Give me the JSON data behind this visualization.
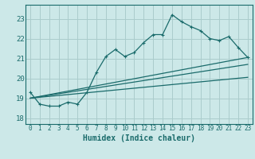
{
  "bg_color": "#cce8e8",
  "line_color": "#1a6b6b",
  "grid_color": "#aacccc",
  "xlabel": "Humidex (Indice chaleur)",
  "ylabel_ticks": [
    18,
    19,
    20,
    21,
    22,
    23
  ],
  "xlim": [
    -0.5,
    23.5
  ],
  "ylim": [
    17.7,
    23.7
  ],
  "main_x": [
    0,
    1,
    2,
    3,
    4,
    5,
    6,
    7,
    8,
    9,
    10,
    11,
    12,
    13,
    14,
    15,
    16,
    17,
    18,
    19,
    20,
    21,
    22,
    23
  ],
  "main_y": [
    19.3,
    18.7,
    18.6,
    18.6,
    18.8,
    18.7,
    19.3,
    20.3,
    21.1,
    21.45,
    21.1,
    21.3,
    21.8,
    22.2,
    22.2,
    23.2,
    22.85,
    22.6,
    22.4,
    22.0,
    21.9,
    22.1,
    21.55,
    21.05
  ],
  "trend1_x": [
    0,
    23
  ],
  "trend1_y": [
    19.0,
    21.05
  ],
  "trend2_x": [
    0,
    23
  ],
  "trend2_y": [
    19.0,
    20.7
  ],
  "trend3_x": [
    0,
    23
  ],
  "trend3_y": [
    19.0,
    20.05
  ],
  "x_tick_labels": [
    "0",
    "1",
    "2",
    "3",
    "4",
    "5",
    "6",
    "7",
    "8",
    "9",
    "10",
    "11",
    "12",
    "13",
    "14",
    "15",
    "16",
    "17",
    "18",
    "19",
    "20",
    "21",
    "22",
    "23"
  ],
  "tick_fontsize": 5.5,
  "label_fontsize": 7.0,
  "ytick_fontsize": 6.5
}
